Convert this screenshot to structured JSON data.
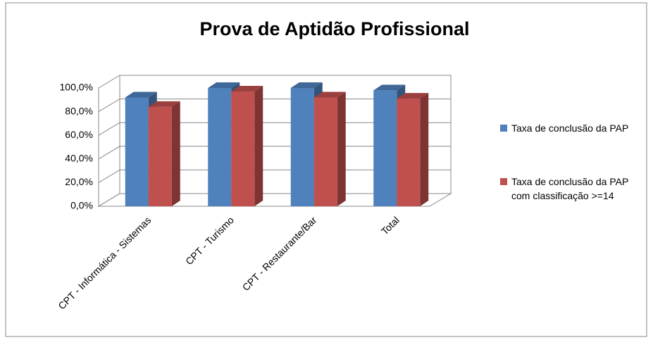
{
  "chart_data": {
    "type": "bar3d",
    "title": "Prova de Aptidão Profissional",
    "categories": [
      "CPT - Informática - Sistemas",
      "CPT - Turismo",
      "CPT - Restaurante/Bar",
      "Total"
    ],
    "series": [
      {
        "name": "Taxa de conclusão da PAP",
        "color": "#4f81bd",
        "values": [
          92,
          100,
          100,
          98
        ]
      },
      {
        "name": "Taxa de conclusão da PAP com classificação >=14",
        "color": "#c0504d",
        "values": [
          84,
          97,
          92,
          91
        ]
      }
    ],
    "ylim": [
      0,
      100
    ],
    "yticks": [
      {
        "value": 0,
        "label": "0,0%"
      },
      {
        "value": 20,
        "label": "20,0%"
      },
      {
        "value": 40,
        "label": "40,0%"
      },
      {
        "value": 60,
        "label": "60,0%"
      },
      {
        "value": 80,
        "label": "80,0%"
      },
      {
        "value": 100,
        "label": "100,0%"
      }
    ],
    "grid": true,
    "legend": "right"
  }
}
